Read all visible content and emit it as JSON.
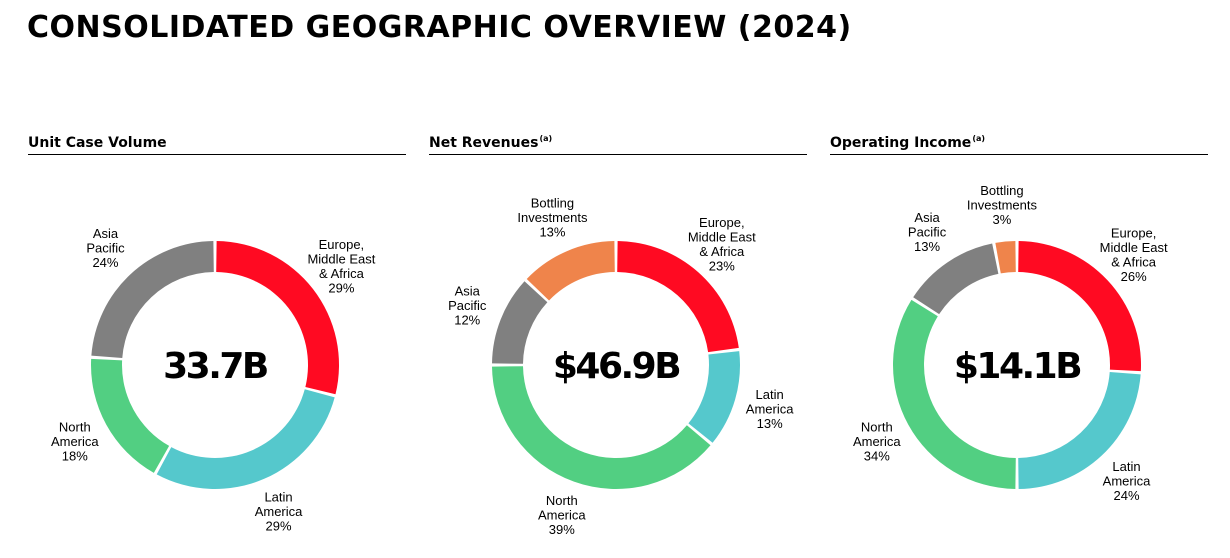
{
  "title": "CONSOLIDATED GEOGRAPHIC OVERVIEW (2024)",
  "colors": {
    "Europe, Middle East & Africa": "#ff0a22",
    "Latin America": "#55c8cc",
    "North America": "#52cf82",
    "Asia Pacific": "#808080",
    "Bottling Investments": "#ef844b"
  },
  "chart_data": [
    {
      "type": "pie",
      "title": "Unit Case Volume",
      "footnote": "",
      "center_value": "33.7B",
      "slices": [
        {
          "label": [
            "Europe,",
            "Middle East",
            "& Africa"
          ],
          "name": "Europe, Middle East & Africa",
          "value": 29,
          "pct": "29%"
        },
        {
          "label": [
            "Latin",
            "America"
          ],
          "name": "Latin America",
          "value": 29,
          "pct": "29%"
        },
        {
          "label": [
            "North",
            "America"
          ],
          "name": "North America",
          "value": 18,
          "pct": "18%"
        },
        {
          "label": [
            "Asia",
            "Pacific"
          ],
          "name": "Asia Pacific",
          "value": 24,
          "pct": "24%"
        }
      ]
    },
    {
      "type": "pie",
      "title": "Net Revenues",
      "footnote": "(a)",
      "center_value": "$46.9B",
      "slices": [
        {
          "label": [
            "Europe,",
            "Middle East",
            "& Africa"
          ],
          "name": "Europe, Middle East & Africa",
          "value": 23,
          "pct": "23%"
        },
        {
          "label": [
            "Latin",
            "America"
          ],
          "name": "Latin America",
          "value": 13,
          "pct": "13%"
        },
        {
          "label": [
            "North",
            "America"
          ],
          "name": "North America",
          "value": 39,
          "pct": "39%"
        },
        {
          "label": [
            "Asia",
            "Pacific"
          ],
          "name": "Asia Pacific",
          "value": 12,
          "pct": "12%"
        },
        {
          "label": [
            "Bottling",
            "Investments"
          ],
          "name": "Bottling Investments",
          "value": 13,
          "pct": "13%"
        }
      ]
    },
    {
      "type": "pie",
      "title": "Operating Income",
      "footnote": "(a)",
      "center_value": "$14.1B",
      "slices": [
        {
          "label": [
            "Europe,",
            "Middle East",
            "& Africa"
          ],
          "name": "Europe, Middle East & Africa",
          "value": 26,
          "pct": "26%"
        },
        {
          "label": [
            "Latin",
            "America"
          ],
          "name": "Latin America",
          "value": 24,
          "pct": "24%"
        },
        {
          "label": [
            "North",
            "America"
          ],
          "name": "North America",
          "value": 34,
          "pct": "34%"
        },
        {
          "label": [
            "Asia",
            "Pacific"
          ],
          "name": "Asia Pacific",
          "value": 13,
          "pct": "13%"
        },
        {
          "label": [
            "Bottling",
            "Investments"
          ],
          "name": "Bottling Investments",
          "value": 3,
          "pct": "3%"
        }
      ]
    }
  ]
}
